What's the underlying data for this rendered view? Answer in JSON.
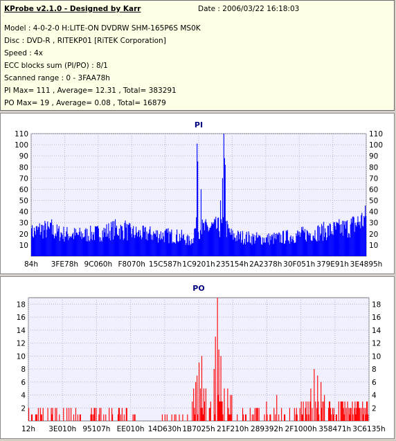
{
  "header": {
    "title": "KProbe v2.1.0 - Designed by Karr",
    "date": "Date : 2006/03/22 16:18:03",
    "lines": [
      "Model : 4-0-2-0 H:LITE-ON DVDRW SHM-165P6S MS0K",
      "Disc : DVD-R , RITEKP01 [RiTEK Corporation]",
      "Speed : 4x",
      "ECC blocks sum (PI/PO) : 8/1",
      "Scanned range : 0 - 3FAA78h",
      "PI Max= 111 , Average= 12.31 , Total= 383291",
      "PO Max= 19 , Average= 0.08 , Total= 16879"
    ]
  },
  "colors": {
    "info_bg": "#ffffe6",
    "plot_bg": "#f0f0ff",
    "series": "#0000ff",
    "po_series": "#ff0000",
    "title": "#000080"
  },
  "chart_data": [
    {
      "type": "bar",
      "title": "PI",
      "ylim": [
        0,
        110
      ],
      "yticks": [
        10,
        20,
        30,
        40,
        50,
        60,
        70,
        80,
        90,
        100,
        110
      ],
      "xticks": [
        "84h",
        "3FE78h",
        "9C060h",
        "F8070h",
        "15C587h",
        "1C9201h",
        "235154h",
        "2A2378h",
        "30F051h",
        "379E91h",
        "3E4895h"
      ],
      "grid": true,
      "shape": [
        [
          0,
          23
        ],
        [
          0.03,
          27
        ],
        [
          0.05,
          26
        ],
        [
          0.07,
          24
        ],
        [
          0.1,
          22
        ],
        [
          0.14,
          21
        ],
        [
          0.18,
          22
        ],
        [
          0.22,
          24
        ],
        [
          0.25,
          27
        ],
        [
          0.28,
          25
        ],
        [
          0.32,
          22
        ],
        [
          0.36,
          22
        ],
        [
          0.39,
          21
        ],
        [
          0.43,
          20
        ],
        [
          0.45,
          19
        ],
        [
          0.46,
          17
        ],
        [
          0.47,
          15
        ],
        [
          0.48,
          16
        ],
        [
          0.49,
          28
        ],
        [
          0.5,
          28
        ],
        [
          0.52,
          27
        ],
        [
          0.54,
          29
        ],
        [
          0.56,
          28
        ],
        [
          0.58,
          29
        ],
        [
          0.6,
          20
        ],
        [
          0.63,
          19
        ],
        [
          0.66,
          18
        ],
        [
          0.7,
          17
        ],
        [
          0.74,
          18
        ],
        [
          0.78,
          20
        ],
        [
          0.82,
          22
        ],
        [
          0.86,
          24
        ],
        [
          0.9,
          26
        ],
        [
          0.94,
          28
        ],
        [
          0.97,
          32
        ],
        [
          1,
          38
        ]
      ],
      "peaks": [
        [
          0.494,
          101
        ],
        [
          0.497,
          85
        ],
        [
          0.507,
          60
        ],
        [
          0.508,
          52
        ],
        [
          0.576,
          111
        ],
        [
          0.578,
          88
        ],
        [
          0.58,
          82
        ],
        [
          0.571,
          70
        ],
        [
          0.566,
          50
        ],
        [
          0.0,
          25
        ],
        [
          0.06,
          33
        ],
        [
          0.28,
          32
        ]
      ],
      "points": 500
    },
    {
      "type": "bar",
      "title": "PO",
      "ylim": [
        0,
        19
      ],
      "yticks": [
        2,
        4,
        6,
        8,
        10,
        12,
        14,
        16,
        18
      ],
      "xticks": [
        "12h",
        "3E010h",
        "95107h",
        "EE010h",
        "14D630h",
        "1B7025h",
        "21F210h",
        "289392h",
        "2F1000h",
        "358471h",
        "3C6135h"
      ],
      "grid": true,
      "peaks": [
        [
          0.555,
          19
        ],
        [
          0.55,
          13
        ],
        [
          0.56,
          11
        ],
        [
          0.565,
          10
        ],
        [
          0.545,
          8
        ],
        [
          0.51,
          10
        ],
        [
          0.5,
          9
        ],
        [
          0.495,
          7
        ],
        [
          0.49,
          6
        ],
        [
          0.485,
          5
        ],
        [
          0.84,
          8
        ],
        [
          0.85,
          7
        ],
        [
          0.86,
          6
        ],
        [
          0.83,
          5
        ],
        [
          0.87,
          4
        ],
        [
          0.73,
          4
        ],
        [
          0.7,
          3
        ]
      ],
      "points": 500
    }
  ]
}
